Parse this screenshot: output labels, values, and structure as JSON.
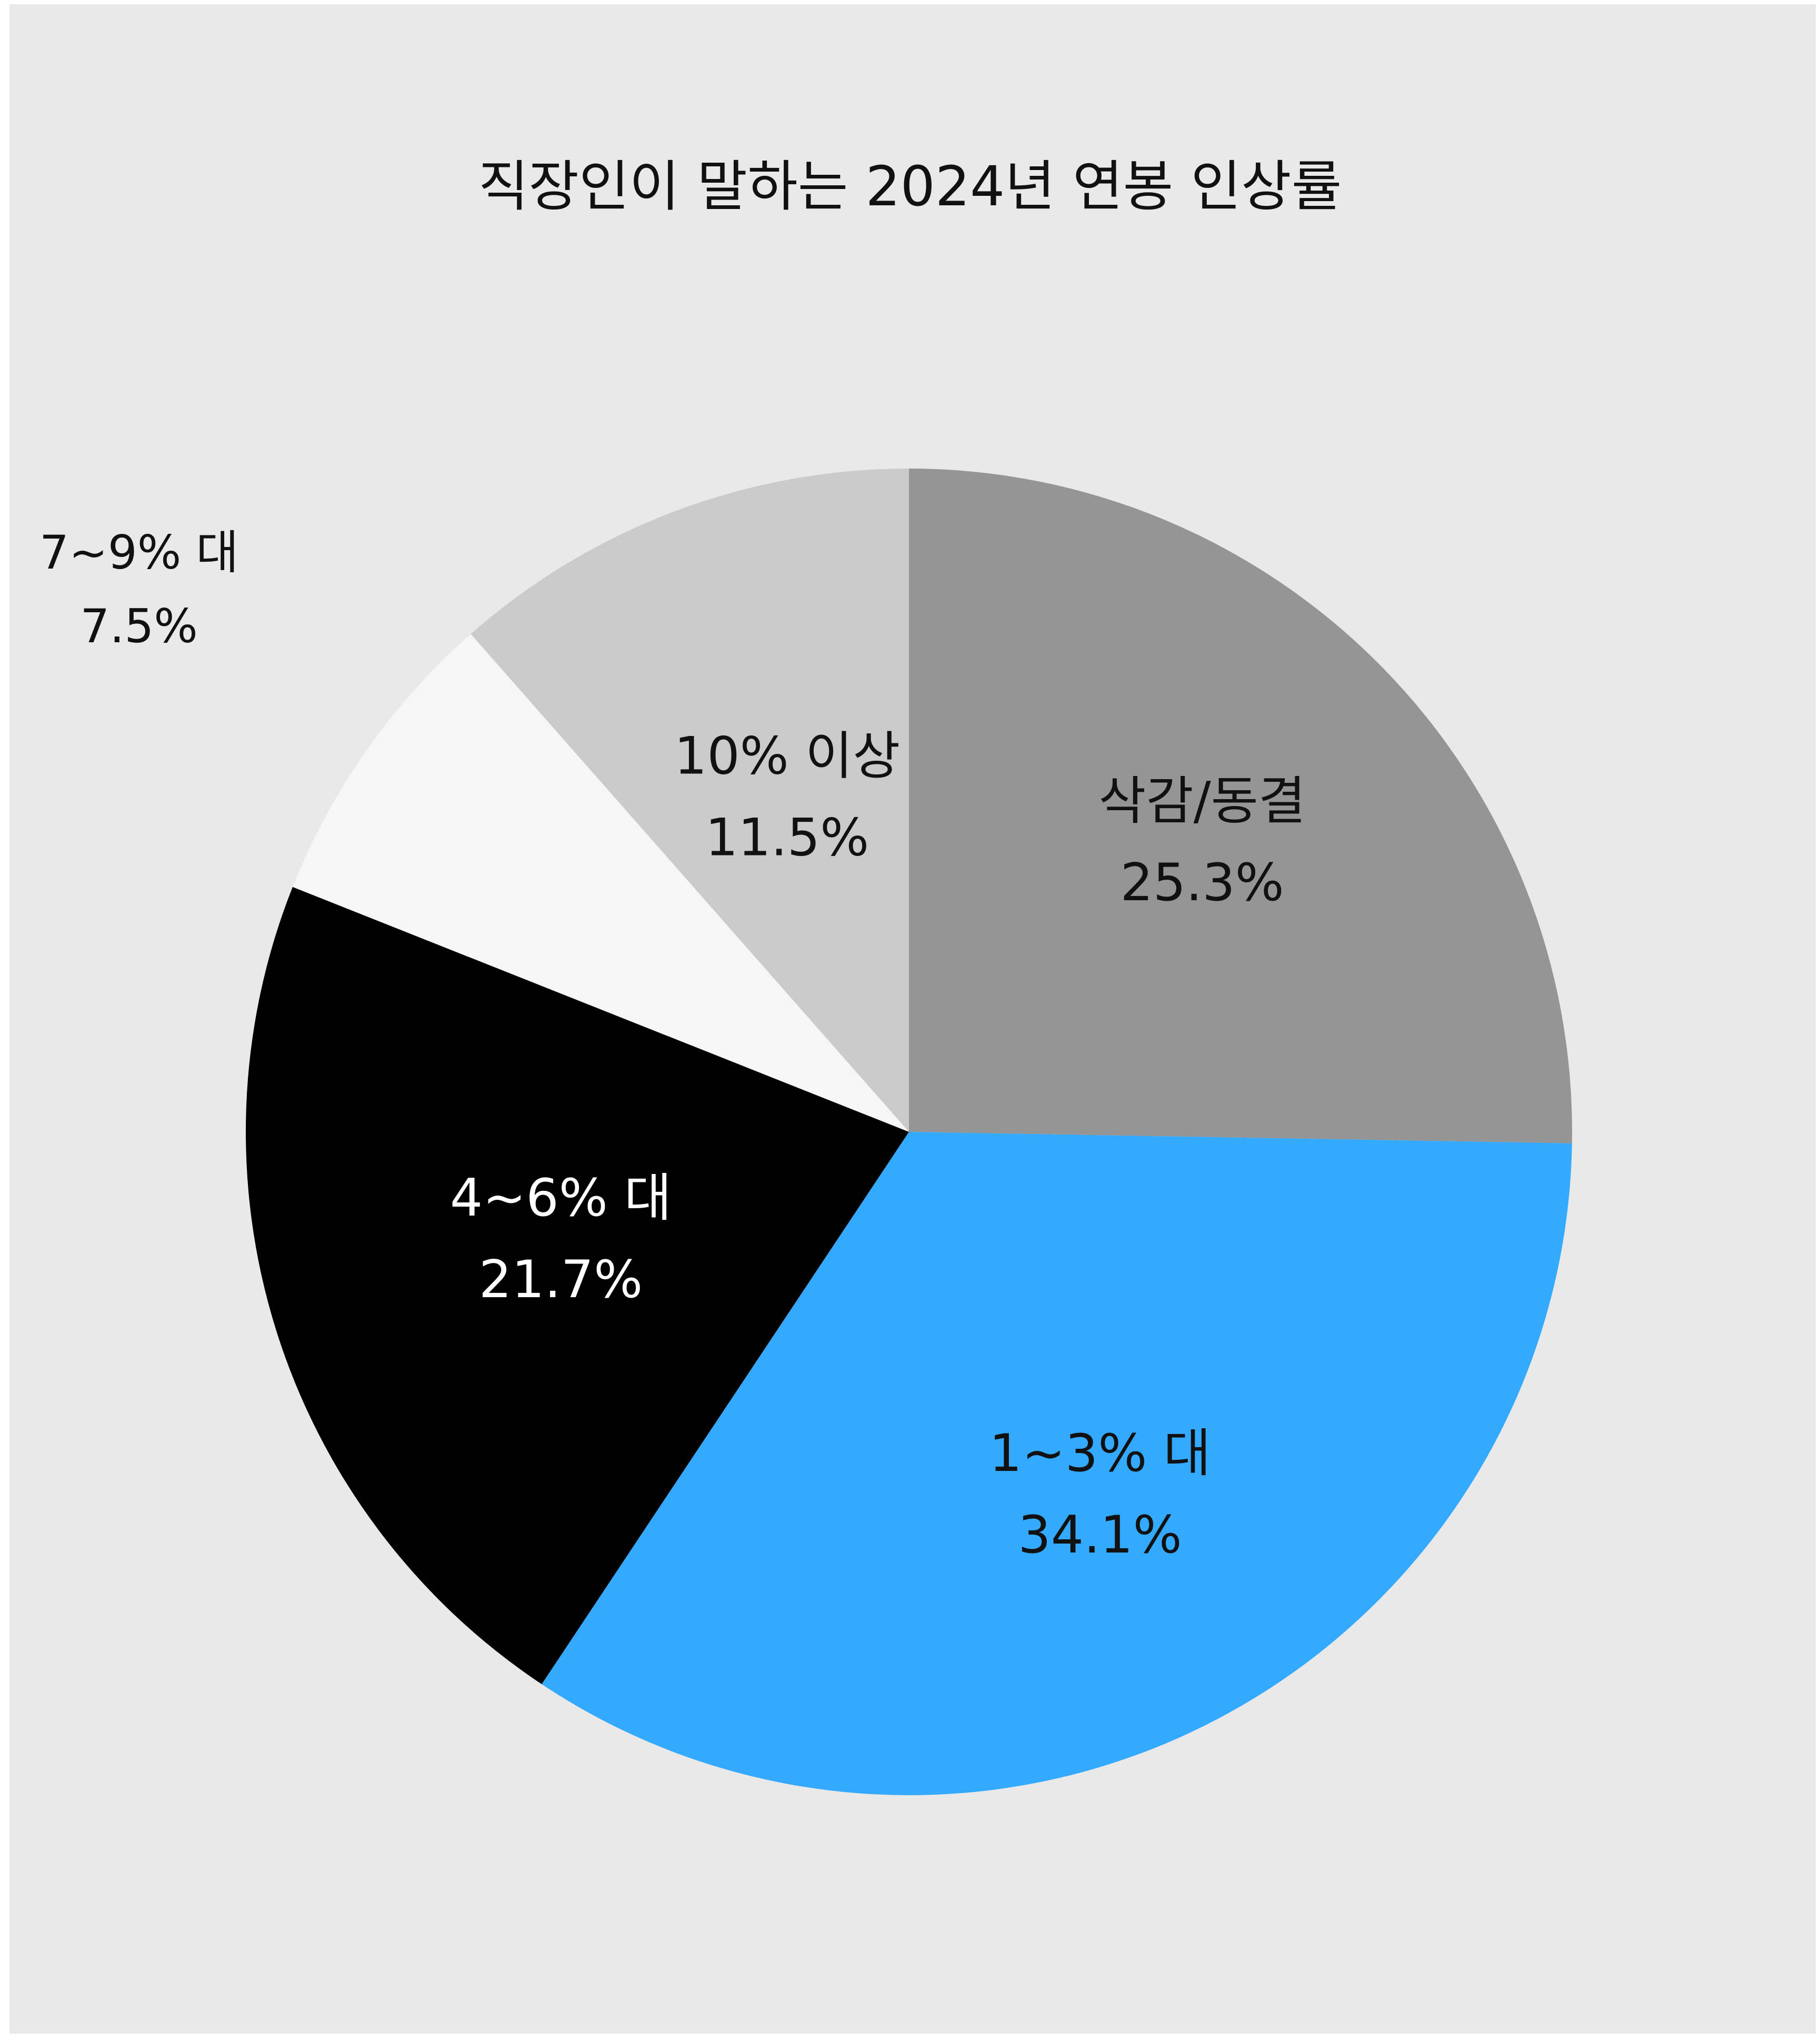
{
  "chart_data": {
    "type": "pie",
    "title": "직장인이 말하는 2024년 연봉 인상률",
    "slices": [
      {
        "label": "삭감/동결",
        "value": 25.3,
        "value_label": "25.3%",
        "color": "#959595",
        "text_color": "#111111"
      },
      {
        "label": "1~3% 대",
        "value": 34.1,
        "value_label": "34.1%",
        "color": "#33a9ff",
        "text_color": "#111111"
      },
      {
        "label": "4~6% 대",
        "value": 21.7,
        "value_label": "21.7%",
        "color": "#000000",
        "text_color": "#ffffff"
      },
      {
        "label": "7~9% 대",
        "value": 7.5,
        "value_label": "7.5%",
        "color": "#f6f6f6",
        "text_color": "#111111"
      },
      {
        "label": "10% 이상",
        "value": 11.5,
        "value_label": "11.5%",
        "color": "#cbcbcb",
        "text_color": "#111111"
      }
    ],
    "start_angle": "12 o'clock",
    "direction": "clockwise",
    "legend": "none"
  }
}
